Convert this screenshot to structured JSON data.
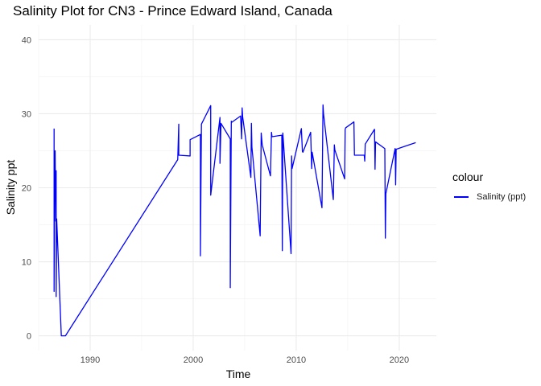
{
  "chart_data": {
    "type": "line",
    "title": "Salinity Plot for CN3 - Prince Edward Island, Canada",
    "xlabel": "Time",
    "ylabel": "Salinity ppt",
    "xlim": [
      1985.0,
      2023.6
    ],
    "ylim": [
      -2.0,
      42.0
    ],
    "x_ticks": [
      1990,
      2000,
      2010,
      2020
    ],
    "y_ticks": [
      0,
      10,
      20,
      30,
      40
    ],
    "grid": true,
    "legend": {
      "title": "colour",
      "position": "right"
    },
    "series": [
      {
        "name": "Salinity (ppt)",
        "color": "#0000ff",
        "x": [
          1986.5,
          1986.5,
          1986.55,
          1986.6,
          1986.6,
          1986.65,
          1986.7,
          1986.7,
          1986.75,
          1987.2,
          1987.6,
          1998.5,
          1998.6,
          1998.6,
          1999.7,
          1999.7,
          2000.7,
          2000.7,
          2000.8,
          2001.7,
          2001.7,
          2002.6,
          2002.6,
          2002.7,
          2003.6,
          2003.6,
          2003.7,
          2003.7,
          2004.6,
          2004.7,
          2004.75,
          2004.8,
          2005.6,
          2005.65,
          2005.7,
          2006.5,
          2006.6,
          2006.7,
          2007.5,
          2007.6,
          2007.65,
          2008.6,
          2008.65,
          2008.7,
          2009.5,
          2009.55,
          2009.6,
          2010.5,
          2010.6,
          2010.65,
          2011.4,
          2011.5,
          2011.55,
          2012.5,
          2012.6,
          2012.65,
          2013.6,
          2013.7,
          2013.75,
          2014.7,
          2014.75,
          2014.8,
          2015.6,
          2015.65,
          2015.7,
          2016.6,
          2016.65,
          2016.7,
          2017.6,
          2017.65,
          2017.7,
          2018.6,
          2018.65,
          2018.7,
          2019.6,
          2019.65,
          2019.7,
          2021.6
        ],
        "y": [
          28.0,
          6.0,
          23.8,
          22.5,
          25.0,
          15.5,
          22.3,
          5.3,
          15.8,
          0.0,
          0.0,
          23.8,
          28.6,
          24.4,
          24.3,
          26.5,
          27.2,
          10.8,
          28.6,
          31.1,
          19.0,
          29.5,
          23.3,
          28.7,
          26.6,
          6.5,
          29.0,
          28.8,
          29.7,
          26.6,
          30.8,
          29.6,
          21.4,
          28.7,
          25.5,
          13.5,
          27.4,
          25.8,
          21.6,
          27.5,
          26.9,
          27.1,
          11.5,
          27.4,
          11.1,
          24.3,
          22.6,
          28.0,
          24.9,
          24.8,
          27.5,
          22.6,
          24.8,
          17.3,
          31.2,
          30.0,
          18.4,
          25.8,
          25.1,
          21.2,
          27.9,
          28.1,
          28.9,
          24.4,
          24.4,
          24.4,
          23.6,
          25.9,
          27.9,
          22.5,
          26.2,
          25.3,
          13.2,
          19.2,
          25.3,
          20.4,
          25.2,
          26.1
        ]
      }
    ]
  }
}
